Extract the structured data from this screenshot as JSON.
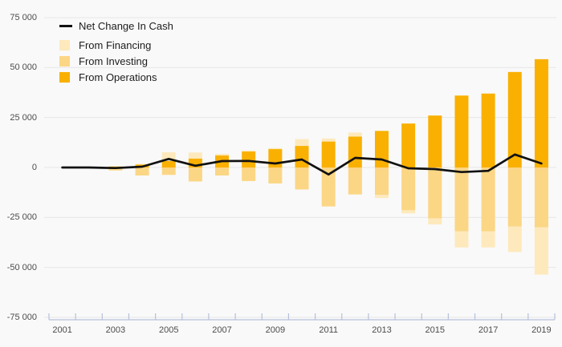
{
  "figure": {
    "background": "#f9f9f9"
  },
  "legend": {
    "items": [
      {
        "label": "Net Change In Cash",
        "swatch": "line",
        "color": "#111111"
      },
      {
        "label": "From Financing",
        "swatch": "square",
        "color": "#fde9bc"
      },
      {
        "label": "From Investing",
        "swatch": "square",
        "color": "#fbd685"
      },
      {
        "label": "From Operations",
        "swatch": "square",
        "color": "#f9b000"
      }
    ]
  },
  "chart_data": {
    "type": "bar",
    "stacked": true,
    "title": "",
    "xlabel": "",
    "ylabel": "",
    "categories": [
      "2001",
      "2002",
      "2003",
      "2004",
      "2005",
      "2006",
      "2007",
      "2008",
      "2009",
      "2010",
      "2011",
      "2012",
      "2013",
      "2014",
      "2015",
      "2016",
      "2017",
      "2018",
      "2019"
    ],
    "series": [
      {
        "name": "From Operations",
        "type": "bar",
        "color": "#f9b000",
        "values": [
          0,
          300,
          500,
          1500,
          3200,
          4500,
          6000,
          8000,
          9200,
          10800,
          13000,
          15500,
          18300,
          22000,
          26000,
          36000,
          37000,
          47800,
          54200
        ]
      },
      {
        "name": "From Investing",
        "type": "bar",
        "color": "#fbd685",
        "values": [
          0,
          -400,
          -1500,
          -4000,
          -3700,
          -7000,
          -4000,
          -6800,
          -8000,
          -11000,
          -19500,
          -13500,
          -13700,
          -21400,
          -25500,
          -32000,
          -32000,
          -29500,
          -30000
        ]
      },
      {
        "name": "From Financing",
        "type": "bar",
        "color": "#fde9bc",
        "values": [
          0,
          0,
          0,
          300,
          4400,
          3000,
          800,
          500,
          500,
          3400,
          1500,
          2000,
          -1600,
          -1600,
          -3000,
          -8000,
          -8000,
          -12800,
          -23600
        ]
      },
      {
        "name": "Net Change In Cash",
        "type": "line",
        "color": "#111111",
        "values": [
          0,
          0,
          -300,
          400,
          4300,
          900,
          3200,
          3300,
          2000,
          4000,
          -3500,
          4800,
          4000,
          -400,
          -800,
          -2300,
          -1700,
          6500,
          2000
        ]
      }
    ],
    "ylim": [
      -75000,
      75000
    ],
    "y_ticks": [
      75000,
      50000,
      25000,
      0,
      -25000,
      -50000,
      -75000
    ],
    "y_tick_labels": [
      "75 000",
      "50 000",
      "25 000",
      "0",
      "-25 000",
      "-50 000",
      "-75 000"
    ],
    "x_tick_labels": [
      "2001",
      "2003",
      "2005",
      "2007",
      "2009",
      "2011",
      "2013",
      "2015",
      "2017",
      "2019"
    ],
    "grid": true,
    "legend_position": "top-left",
    "colors": {
      "grid": "#e8e8e8",
      "axis": "#b7c0da",
      "tick_label": "#4c4c4c"
    }
  }
}
